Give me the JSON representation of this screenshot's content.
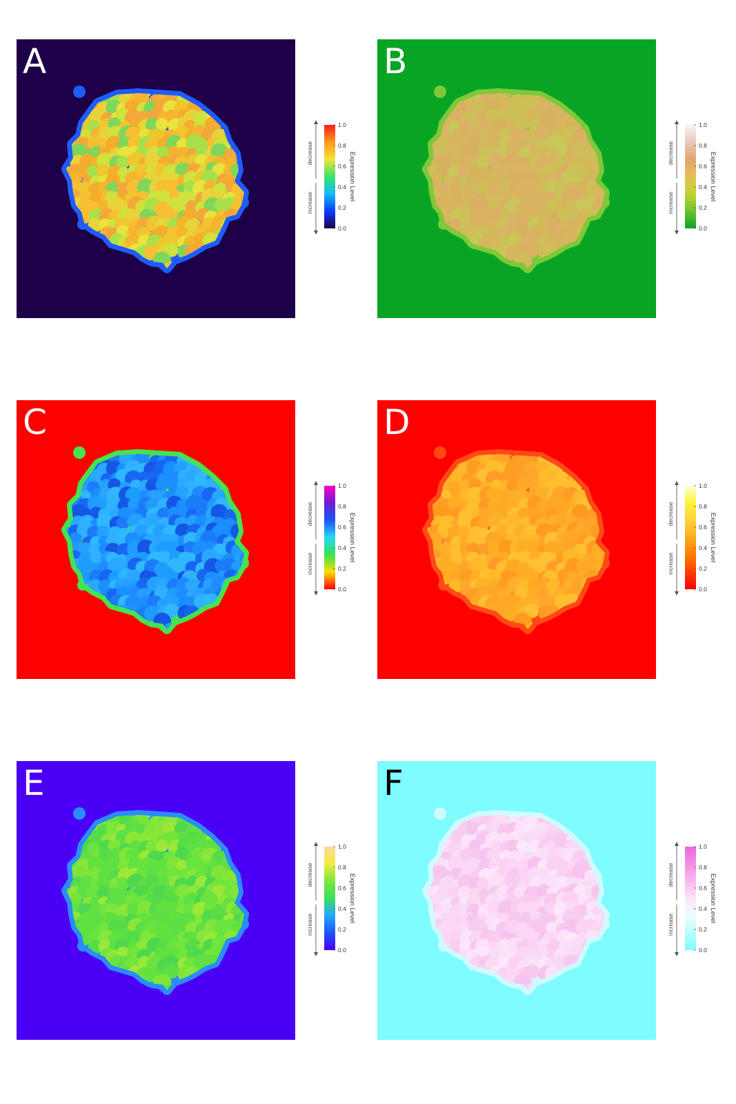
{
  "chart_data": [
    {
      "type": "heatmap",
      "panel": "A",
      "label_color": "#ffffff",
      "background": "#1e0049",
      "edge_color": "#1f5cff",
      "cell_colors": [
        "#f7c033",
        "#f5b52e",
        "#e9d33a",
        "#f2a93a",
        "#cfe23e",
        "#a8e04a",
        "#f0c62f",
        "#7fd65a",
        "#f4ad2c",
        "#e8e43d"
      ],
      "legend": {
        "title": "Expression Level",
        "ticks": [
          "1.0",
          "0.8",
          "0.6",
          "0.4",
          "0.2",
          "0.0"
        ],
        "decrease_label": "decrease",
        "increase_label": "increase",
        "gradient": [
          "#1e0049",
          "#0a3cff",
          "#16b8ff",
          "#39e46a",
          "#f2e23a",
          "#ff9a1a",
          "#ff1c1c"
        ]
      }
    },
    {
      "type": "heatmap",
      "panel": "B",
      "label_color": "#ffffff",
      "background": "#08a424",
      "edge_color": "#7fc83a",
      "cell_colors": [
        "#d8b55e",
        "#d4b95b",
        "#dcb064",
        "#cfc056",
        "#d9b461",
        "#c9c65a",
        "#dbb366",
        "#d2bb5c",
        "#d6b45f",
        "#ccc159"
      ],
      "legend": {
        "title": "Expression Level",
        "ticks": [
          "1.0",
          "0.8",
          "0.6",
          "0.4",
          "0.2",
          "0.0"
        ],
        "decrease_label": "decrease",
        "increase_label": "increase",
        "gradient": [
          "#08a424",
          "#6cc42c",
          "#c2d233",
          "#e2c151",
          "#e1a56e",
          "#eac8c0",
          "#f5f5f5"
        ]
      }
    },
    {
      "type": "heatmap",
      "panel": "C",
      "label_color": "#ffffff",
      "background": "#ff0000",
      "edge_color": "#46e34f",
      "cell_colors": [
        "#1f9cff",
        "#1e8cff",
        "#2aa8ff",
        "#1767f2",
        "#30b8ff",
        "#1c7cf8",
        "#25a0ff",
        "#1456e6",
        "#2fb1ff",
        "#1a90ff"
      ],
      "legend": {
        "title": "Expression Level",
        "ticks": [
          "1.0",
          "0.8",
          "0.6",
          "0.4",
          "0.2",
          "0.0"
        ],
        "decrease_label": "decrease",
        "increase_label": "increase",
        "gradient": [
          "#ff0000",
          "#ffdd00",
          "#35e44f",
          "#28d7f5",
          "#1a55ff",
          "#6b1ed1",
          "#ff00c4"
        ]
      }
    },
    {
      "type": "heatmap",
      "panel": "D",
      "label_color": "#ffffff",
      "background": "#ff0000",
      "edge_color": "#ff4a16",
      "cell_colors": [
        "#ffae24",
        "#ffa52a",
        "#ffb829",
        "#ff9d26",
        "#ffc032",
        "#ffa826",
        "#ffb02b",
        "#ff9b20",
        "#ffbe2e",
        "#ffa92a"
      ],
      "legend": {
        "title": "Expression Level",
        "ticks": [
          "1.0",
          "0.8",
          "0.6",
          "0.4",
          "0.2",
          "0.0"
        ],
        "decrease_label": "decrease",
        "increase_label": "increase",
        "gradient": [
          "#ff0000",
          "#ff3c00",
          "#ff7d00",
          "#ffaa1e",
          "#ffd43a",
          "#fff236",
          "#ffffd9"
        ]
      }
    },
    {
      "type": "heatmap",
      "panel": "E",
      "label_color": "#ffffff",
      "background": "#4a00f5",
      "edge_color": "#2b8cff",
      "cell_colors": [
        "#62e23f",
        "#72e53c",
        "#55dc48",
        "#8be63a",
        "#5edf44",
        "#69e43f",
        "#4fd84d",
        "#7fe53b",
        "#60e042",
        "#9ce83a"
      ],
      "legend": {
        "title": "Expression Level",
        "ticks": [
          "1.0",
          "0.8",
          "0.6",
          "0.4",
          "0.2",
          "0.0"
        ],
        "decrease_label": "decrease",
        "increase_label": "increase",
        "gradient": [
          "#4a00f5",
          "#1e52ff",
          "#23a8ff",
          "#3ddf5f",
          "#7ce83a",
          "#f2ea3c",
          "#ffd9a3"
        ]
      }
    },
    {
      "type": "heatmap",
      "panel": "F",
      "label_color": "#000000",
      "background": "#7ffcff",
      "edge_color": "#cdfbff",
      "cell_colors": [
        "#fbd6f5",
        "#fadcf7",
        "#f9cdf2",
        "#fde3f9",
        "#f8c9f0",
        "#fbd2f4",
        "#fce0f8",
        "#f7c4ef",
        "#fad8f5",
        "#fde7fa"
      ],
      "legend": {
        "title": "Expression Level",
        "ticks": [
          "1.0",
          "0.8",
          "0.6",
          "0.4",
          "0.2",
          "0.0"
        ],
        "decrease_label": "decrease",
        "increase_label": "increase",
        "gradient": [
          "#7ffcff",
          "#b8fdff",
          "#ecffff",
          "#fbe4f8",
          "#f9b9ee",
          "#f58ce3",
          "#f067dc"
        ]
      }
    }
  ]
}
